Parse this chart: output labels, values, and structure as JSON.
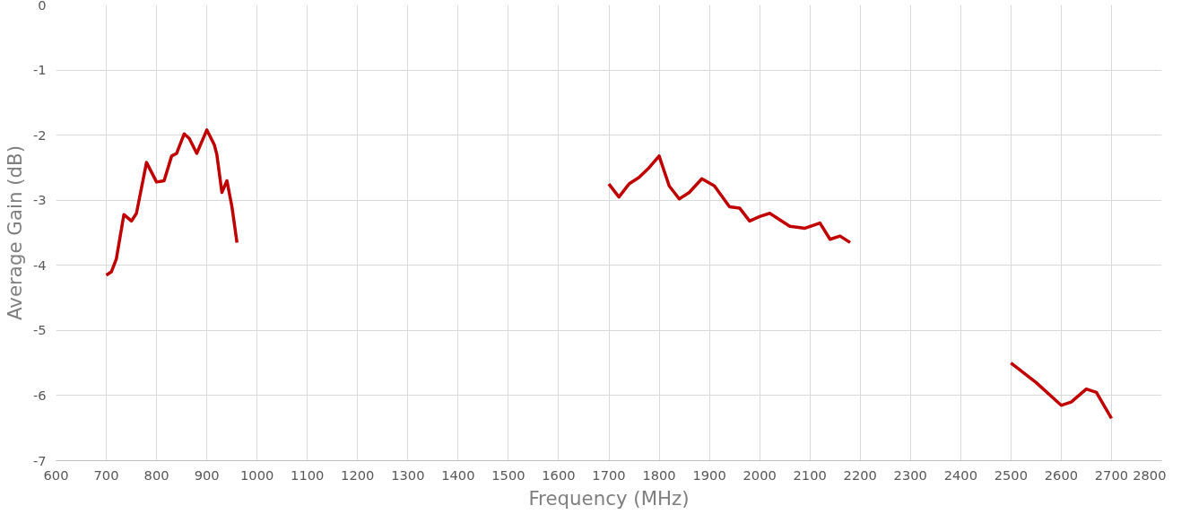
{
  "chart_data": {
    "type": "line",
    "xlabel": "Frequency (MHz)",
    "ylabel": "Average Gain (dB)",
    "xlim": [
      600,
      2800
    ],
    "xticks": [
      600,
      700,
      800,
      900,
      1000,
      1100,
      1200,
      1300,
      1400,
      1500,
      1600,
      1700,
      1800,
      1900,
      2000,
      2100,
      2200,
      2300,
      2400,
      2500,
      2600,
      2700,
      2800
    ],
    "ylim": [
      -7,
      0
    ],
    "yticks": [
      -7,
      -6,
      -5,
      -4,
      -3,
      -2,
      -1,
      0
    ],
    "grid": true,
    "marker": "none",
    "line_style": "solid",
    "series": [
      {
        "color": "#c00000",
        "x": [
          700,
          710,
          720,
          735,
          750,
          760,
          780,
          800,
          815,
          830,
          840,
          855,
          865,
          880,
          900,
          915,
          920,
          930,
          940,
          950,
          960
        ],
        "values": [
          -4.15,
          -4.1,
          -3.9,
          -3.22,
          -3.32,
          -3.2,
          -2.42,
          -2.72,
          -2.7,
          -2.32,
          -2.28,
          -1.98,
          -2.05,
          -2.28,
          -1.92,
          -2.15,
          -2.3,
          -2.88,
          -2.7,
          -3.1,
          -3.65
        ]
      },
      {
        "color": "#c00000",
        "x": [
          1700,
          1720,
          1740,
          1760,
          1780,
          1800,
          1820,
          1840,
          1860,
          1885,
          1910,
          1940,
          1960,
          1980,
          2000,
          2020,
          2060,
          2090,
          2120,
          2140,
          2160,
          2180
        ],
        "values": [
          -2.75,
          -2.95,
          -2.75,
          -2.65,
          -2.5,
          -2.32,
          -2.78,
          -2.98,
          -2.88,
          -2.67,
          -2.78,
          -3.1,
          -3.12,
          -3.32,
          -3.25,
          -3.2,
          -3.4,
          -3.43,
          -3.35,
          -3.6,
          -3.55,
          -3.65
        ]
      },
      {
        "color": "#c00000",
        "x": [
          2500,
          2550,
          2600,
          2620,
          2650,
          2670,
          2700
        ],
        "values": [
          -5.5,
          -5.8,
          -6.15,
          -6.1,
          -5.9,
          -5.95,
          -6.35
        ]
      }
    ]
  }
}
